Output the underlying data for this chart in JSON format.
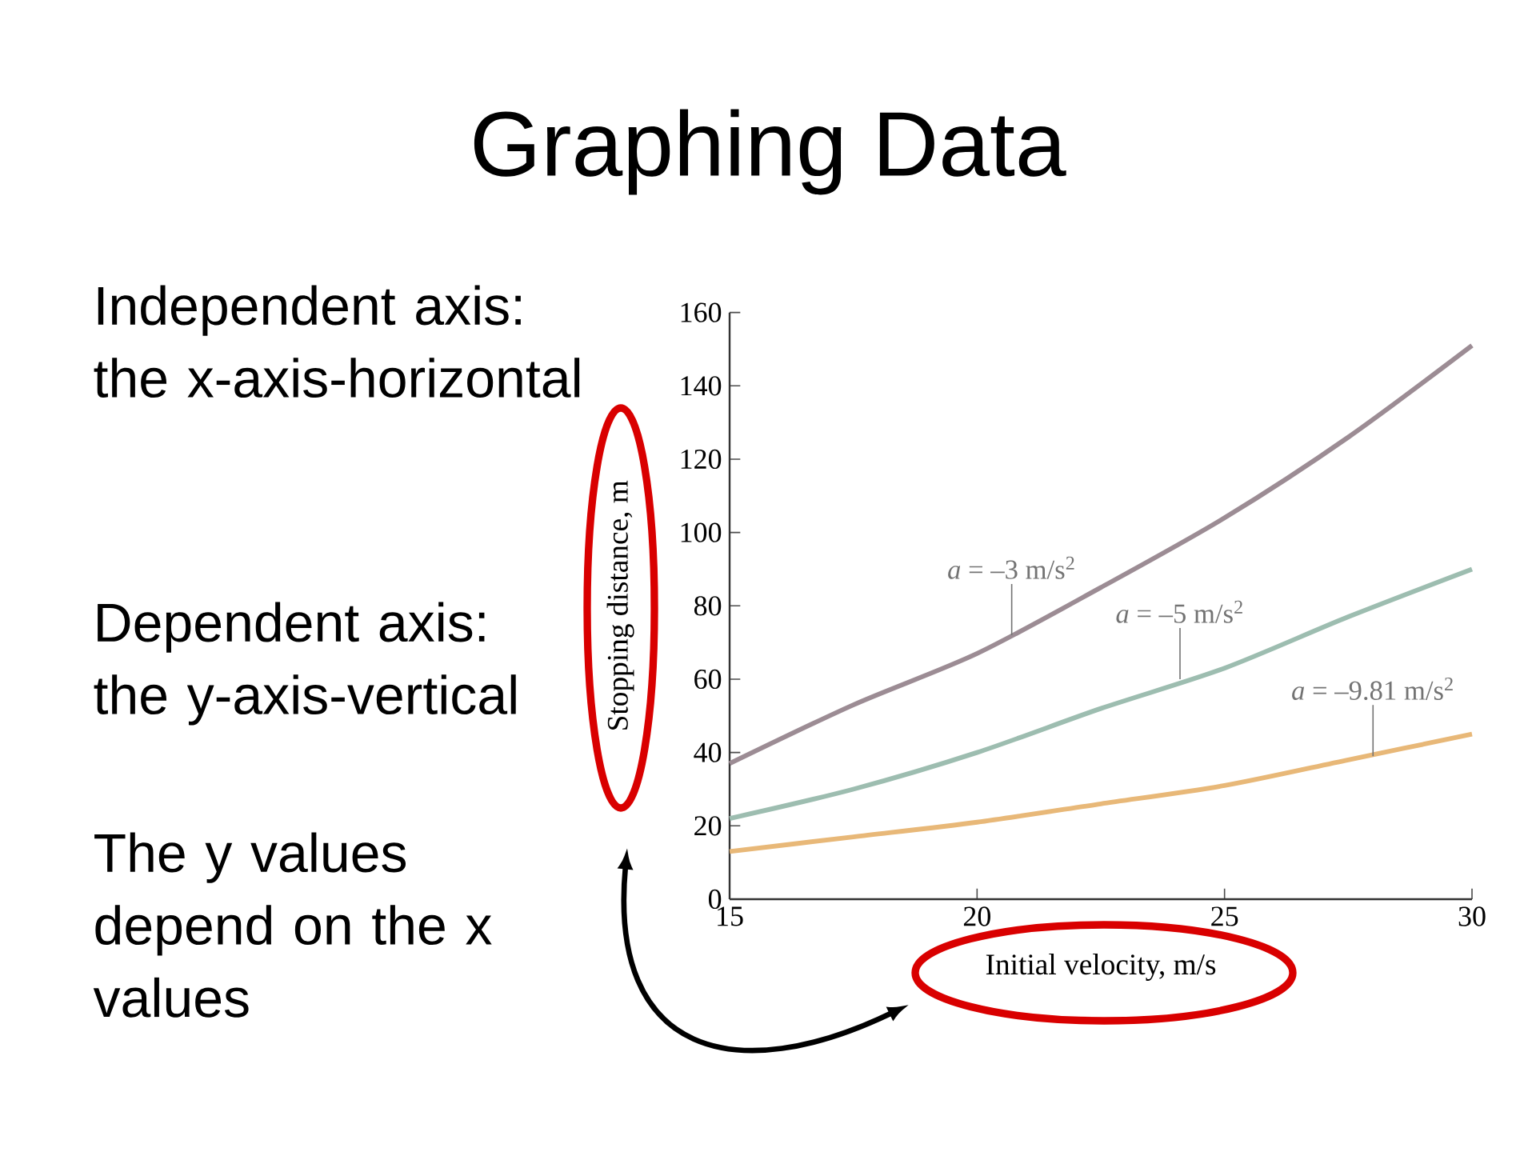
{
  "chart_data": {
    "type": "line",
    "title": "Graphing Data",
    "xlabel": "Initial velocity, m/s",
    "ylabel": "Stopping distance, m",
    "x": [
      15,
      17.5,
      20,
      22.5,
      25,
      27.5,
      30
    ],
    "series": [
      {
        "color": "#9c8c94",
        "values": [
          37,
          53,
          67,
          85,
          104,
          126,
          151
        ]
      },
      {
        "color": "#9dbdb0",
        "values": [
          22,
          30,
          40,
          52,
          63,
          77,
          90
        ]
      },
      {
        "color": "#e8b878",
        "values": [
          13,
          17,
          21,
          26,
          31,
          38,
          45
        ]
      }
    ],
    "xlim": [
      15,
      30
    ],
    "xticks": [
      15,
      20,
      25,
      30
    ],
    "ylim": [
      0,
      160
    ],
    "yticks": [
      0,
      20,
      40,
      60,
      80,
      100,
      120,
      140,
      160
    ],
    "grid": false,
    "marker": "none",
    "line_style": "solid",
    "annotations": [
      "Independent axis: the x-axis-horizontal",
      "Dependent axis: the y-axis-vertical",
      "The y values depend on the x values",
      {
        "text": "*a* = –3 m/s$^{2}$",
        "x": 20.7,
        "y": 72
      },
      {
        "text": "*a* = –5 m/s$^{2}$",
        "x": 24.1,
        "y": 60
      },
      {
        "text": "*a* = –9.81 m/s$^{2}$",
        "x": 28,
        "y": 39
      }
    ]
  }
}
